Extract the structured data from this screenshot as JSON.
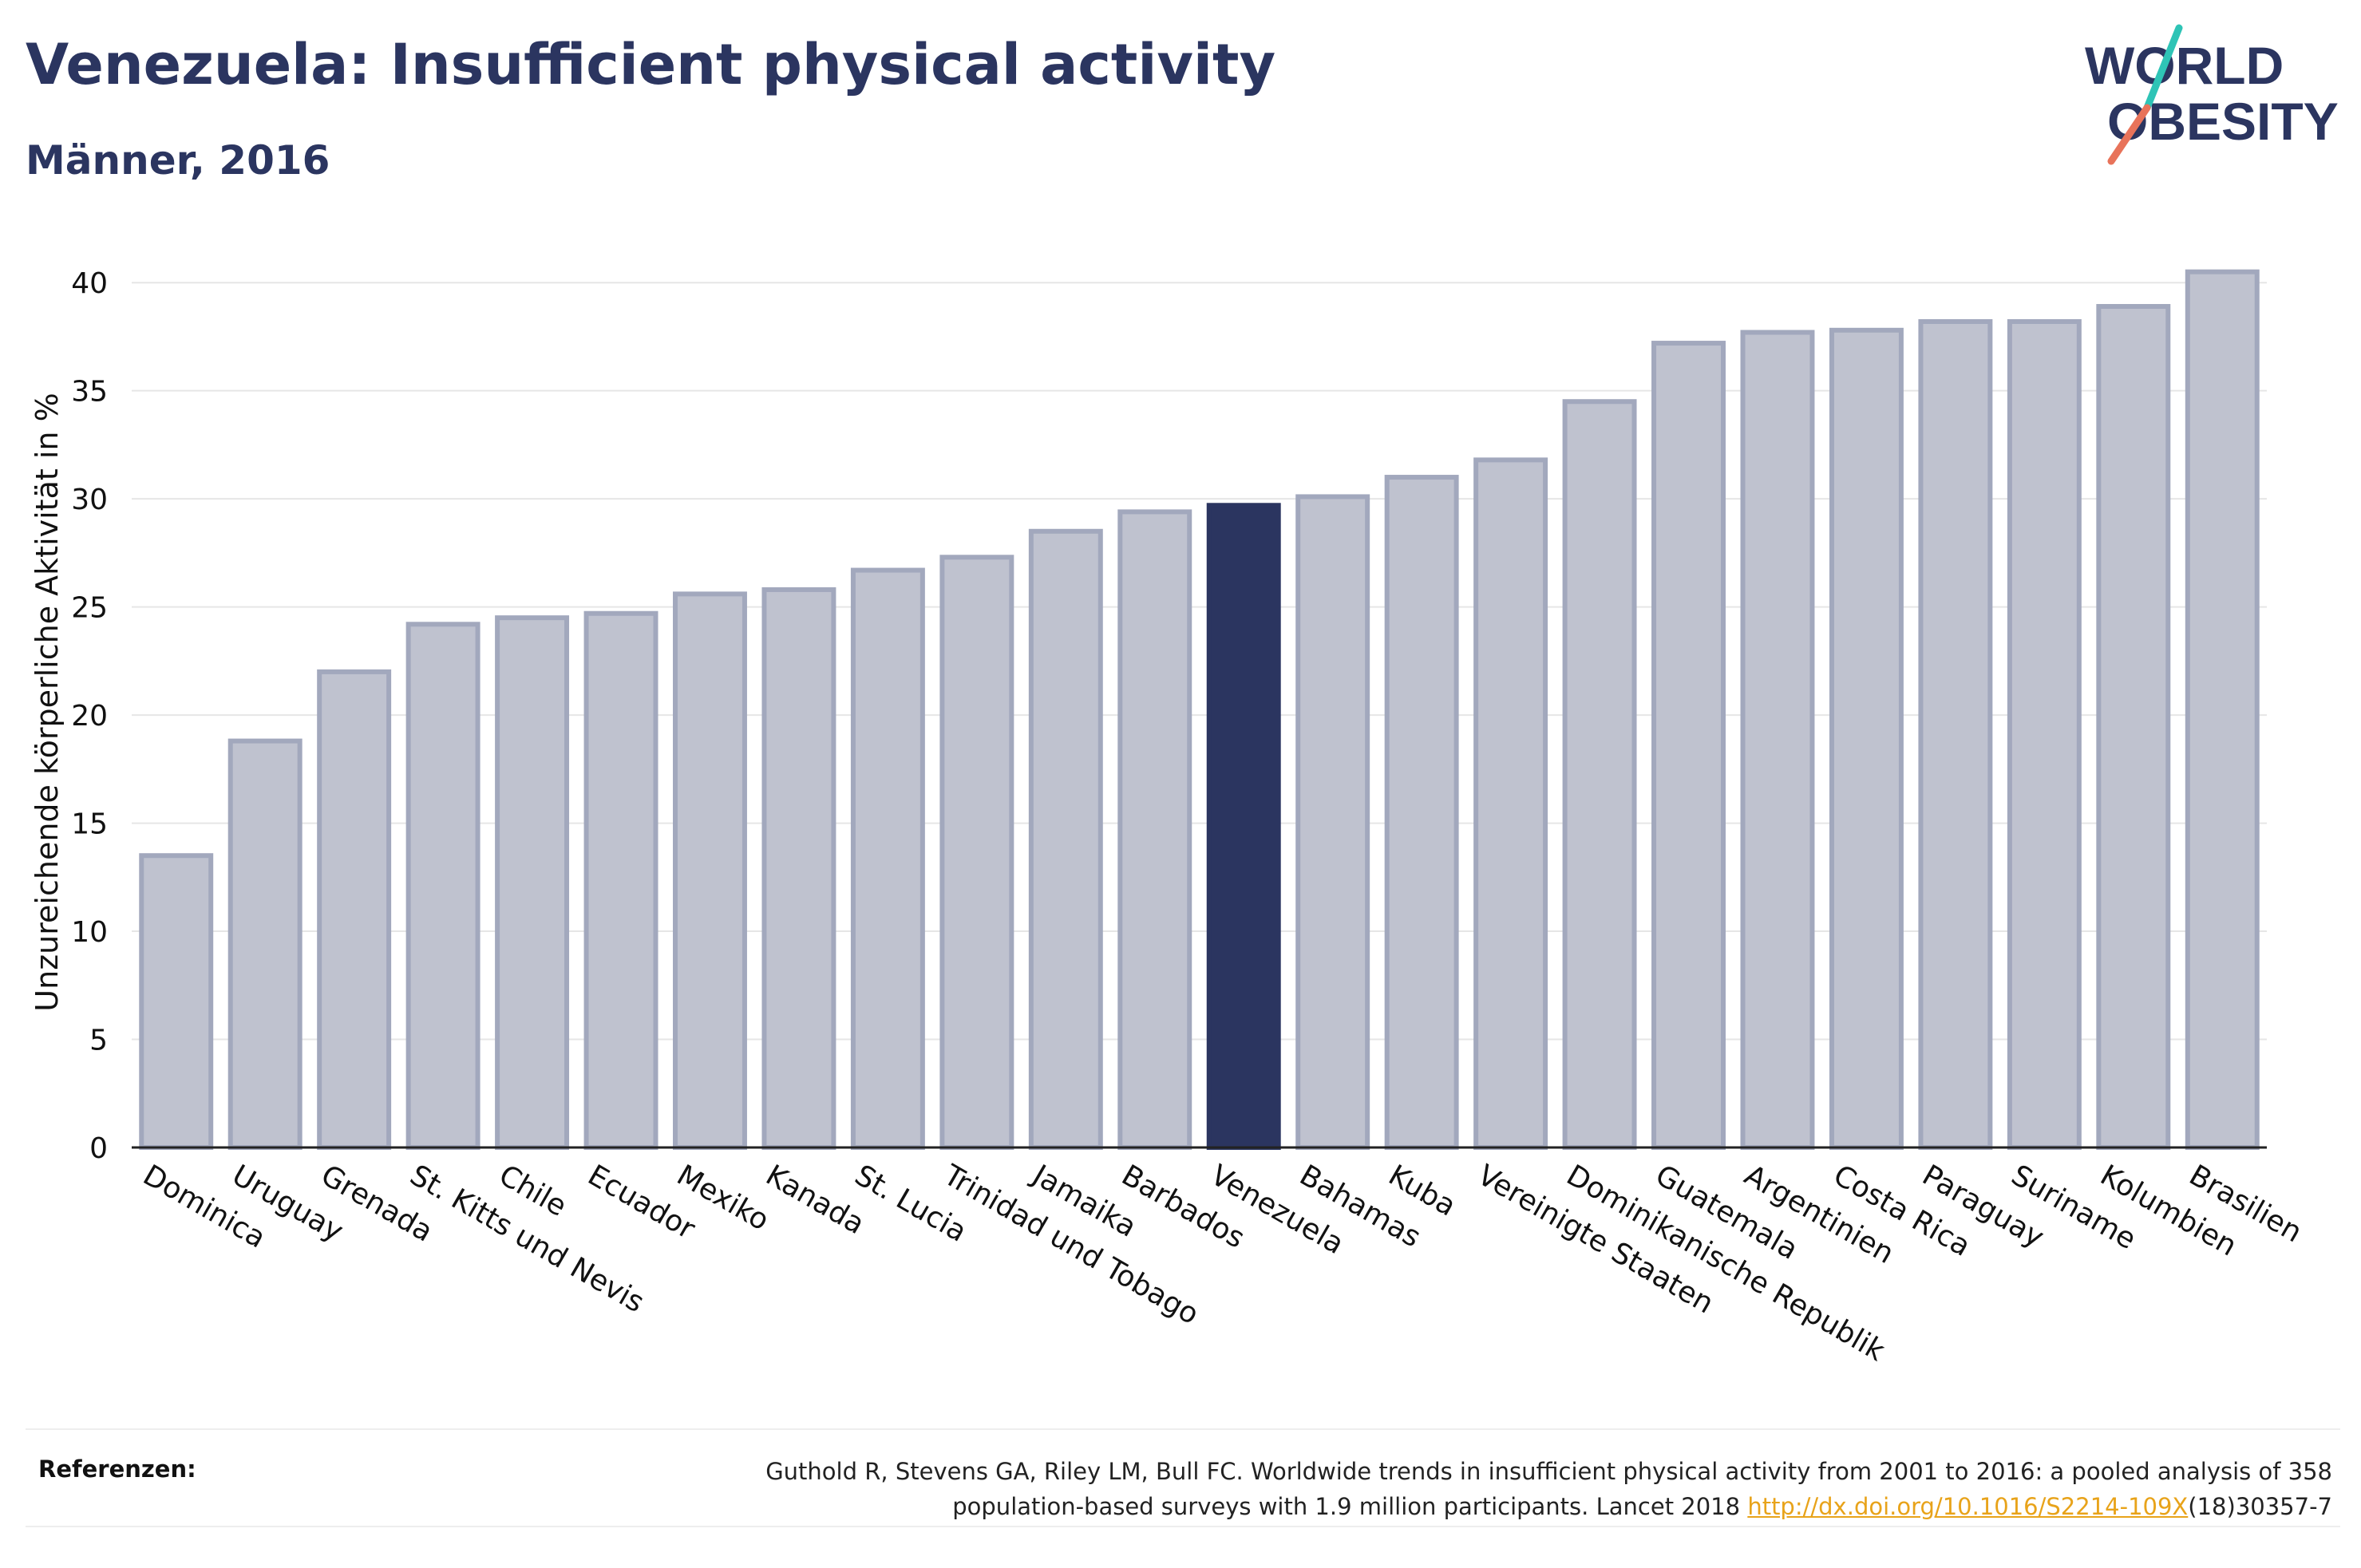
{
  "header": {
    "title": "Venezuela: Insufficient physical activity",
    "subtitle": "Männer, 2016"
  },
  "logo": {
    "line1": "WORLD",
    "line2": "OBESITY"
  },
  "colors": {
    "highlight": "#2b3560",
    "bar_fill": "#bfc2cf",
    "bar_stroke": "#a2a8bd",
    "accent_teal": "#2ec4b6",
    "accent_coral": "#e8735a",
    "link": "#e8a31a"
  },
  "chart_data": {
    "type": "bar",
    "title": "Venezuela: Insufficient physical activity",
    "subtitle": "Männer, 2016",
    "xlabel": "",
    "ylabel": "Unzureichende körperliche Aktivität in %",
    "ylim": [
      0,
      42
    ],
    "yticks": [
      0,
      5,
      10,
      15,
      20,
      25,
      30,
      35,
      40
    ],
    "grid": true,
    "highlight": "Venezuela",
    "categories": [
      "Dominica",
      "Uruguay",
      "Grenada",
      "St. Kitts und Nevis",
      "Chile",
      "Ecuador",
      "Mexiko",
      "Kanada",
      "St. Lucia",
      "Trinidad und Tobago",
      "Jamaika",
      "Barbados",
      "Venezuela",
      "Bahamas",
      "Kuba",
      "Vereinigte Staaten",
      "Dominikanische Republik",
      "Guatemala",
      "Argentinien",
      "Costa Rica",
      "Paraguay",
      "Suriname",
      "Kolumbien",
      "Brasilien"
    ],
    "values": [
      13.5,
      18.8,
      22.0,
      24.2,
      24.5,
      24.7,
      25.6,
      25.8,
      26.7,
      27.3,
      28.5,
      29.4,
      29.7,
      30.1,
      31.0,
      31.8,
      34.5,
      37.2,
      37.7,
      37.8,
      38.2,
      38.2,
      38.9,
      40.5
    ]
  },
  "references": {
    "label": "Referenzen:",
    "text_line1": "Guthold R, Stevens GA, Riley LM, Bull FC. Worldwide trends in insufficient physical activity from 2001 to 2016: a pooled analysis of 358",
    "text_line2_prefix": "population-based surveys with 1.9 million participants. Lancet 2018 ",
    "link": "http://dx.doi.org/10.1016/S2214-109X",
    "text_line2_suffix": "(18)30357-7"
  }
}
